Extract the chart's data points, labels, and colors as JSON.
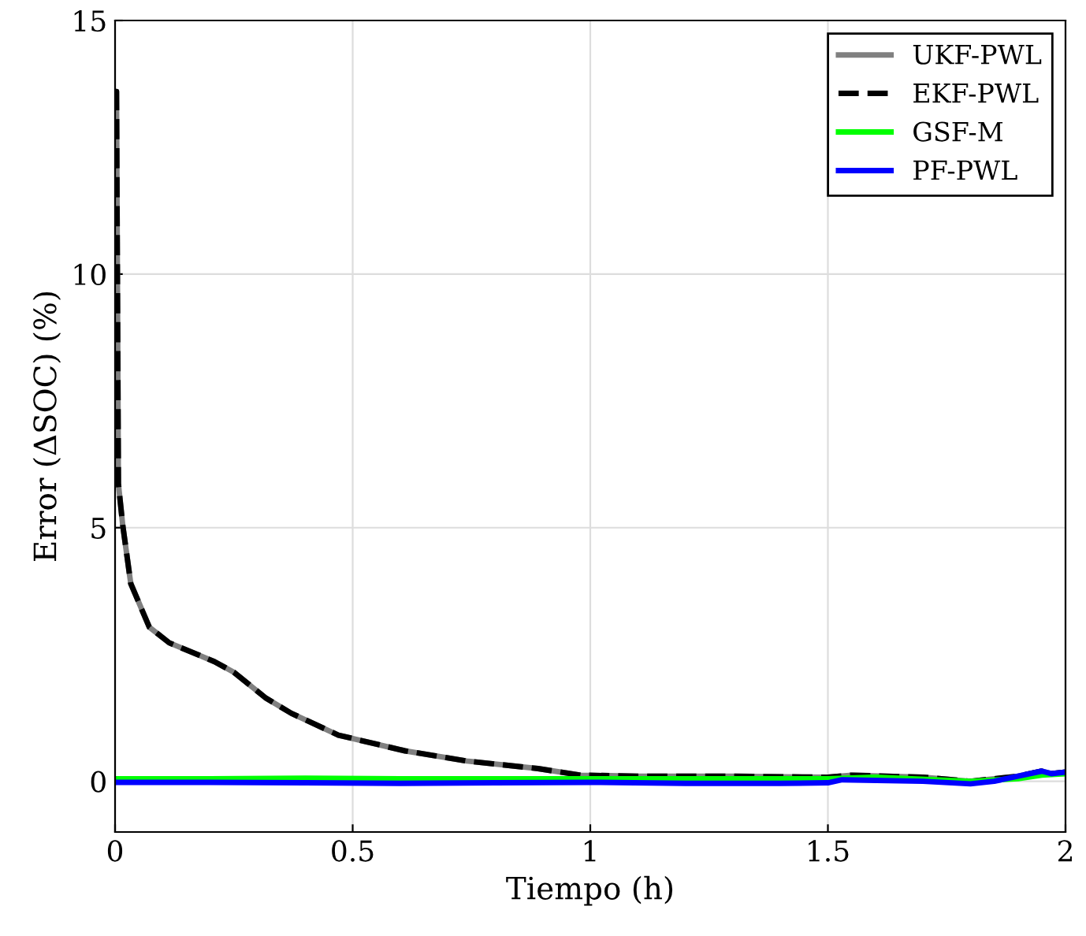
{
  "chart_data": {
    "type": "line",
    "xlabel": "Tiempo (h)",
    "ylabel": "Error (ΔSOC) (%)",
    "xlim": [
      0,
      2
    ],
    "ylim": [
      -1,
      15
    ],
    "xticks": [
      0,
      0.5,
      1,
      1.5,
      2
    ],
    "yticks": [
      0,
      5,
      10,
      15
    ],
    "grid": true,
    "legend": "top right",
    "series": [
      {
        "name": "UKF-PWL",
        "color": "#808080",
        "line_style": "solid",
        "x": [
          0,
          0.003,
          0.007,
          0.016,
          0.033,
          0.072,
          0.114,
          0.209,
          0.25,
          0.316,
          0.371,
          0.47,
          0.61,
          0.74,
          0.89,
          0.98,
          1.1,
          1.3,
          1.5,
          1.55,
          1.7,
          1.8,
          1.85,
          1.9,
          1.95,
          1.97,
          2
        ],
        "values": [
          13.6,
          13.6,
          5.87,
          5.06,
          3.9,
          3.04,
          2.73,
          2.36,
          2.15,
          1.65,
          1.34,
          0.91,
          0.6,
          0.4,
          0.25,
          0.12,
          0.1,
          0.1,
          0.08,
          0.12,
          0.08,
          0.0,
          0.05,
          0.1,
          0.2,
          0.15,
          0.18
        ]
      },
      {
        "name": "EKF-PWL",
        "color": "#000000",
        "line_style": "dashed",
        "x": [
          0,
          0.003,
          0.007,
          0.016,
          0.033,
          0.072,
          0.114,
          0.209,
          0.25,
          0.316,
          0.371,
          0.47,
          0.61,
          0.74,
          0.89,
          0.98,
          1.1,
          1.3,
          1.5,
          1.55,
          1.7,
          1.8,
          1.85,
          1.9,
          1.95,
          1.97,
          2
        ],
        "values": [
          13.6,
          13.6,
          5.87,
          5.06,
          3.9,
          3.04,
          2.73,
          2.36,
          2.15,
          1.65,
          1.34,
          0.91,
          0.6,
          0.4,
          0.25,
          0.12,
          0.1,
          0.1,
          0.08,
          0.12,
          0.08,
          0.0,
          0.05,
          0.1,
          0.2,
          0.15,
          0.18
        ]
      },
      {
        "name": "GSF-M",
        "color": "#00ff00",
        "line_style": "solid",
        "x": [
          0,
          0.2,
          0.4,
          0.6,
          0.8,
          1.0,
          1.2,
          1.4,
          1.5,
          1.6,
          1.8,
          1.9,
          1.95,
          2
        ],
        "values": [
          0.05,
          0.05,
          0.06,
          0.05,
          0.05,
          0.05,
          0.05,
          0.05,
          0.05,
          0.08,
          0.0,
          0.05,
          0.12,
          0.15
        ]
      },
      {
        "name": "PF-PWL",
        "color": "#0000ff",
        "line_style": "solid",
        "x": [
          0,
          0.2,
          0.4,
          0.6,
          0.8,
          1.0,
          1.2,
          1.4,
          1.5,
          1.53,
          1.7,
          1.8,
          1.85,
          1.9,
          1.95,
          1.97,
          2
        ],
        "values": [
          -0.02,
          -0.02,
          -0.03,
          -0.04,
          -0.03,
          -0.02,
          -0.04,
          -0.04,
          -0.03,
          0.03,
          0.0,
          -0.05,
          0.0,
          0.1,
          0.2,
          0.15,
          0.18
        ]
      }
    ]
  }
}
